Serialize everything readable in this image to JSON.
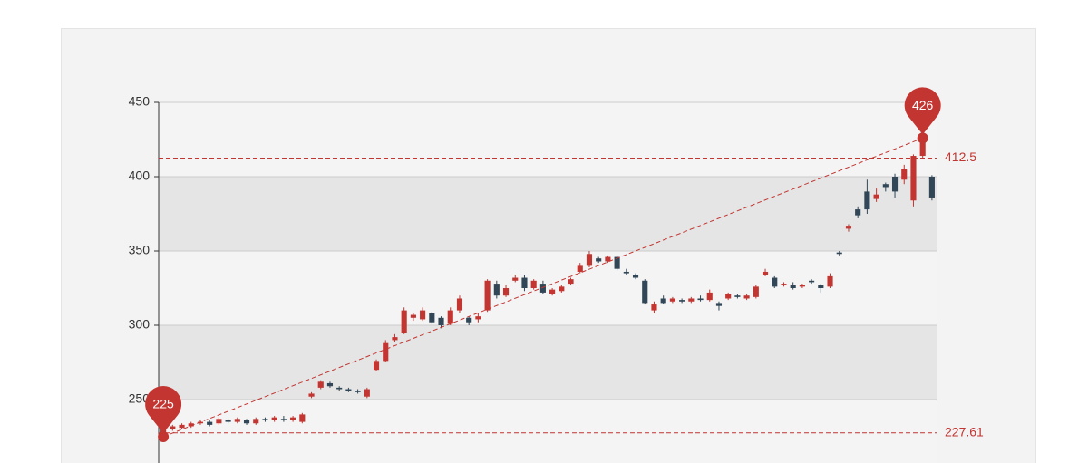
{
  "chart_data": {
    "type": "candlestick",
    "ylim": [
      200,
      450
    ],
    "yticks": [
      250,
      300,
      350,
      400,
      450
    ],
    "split_area": true,
    "up_color": "#c23531",
    "down_color": "#314656",
    "mark_color": "#c23531",
    "mark_points": [
      225,
      426
    ],
    "mark_lines": [
      412.5,
      227.61
    ],
    "trend_line": true,
    "series": [
      {
        "values": [
          [
            226,
            230,
            225,
            231
          ],
          [
            230,
            232,
            229,
            233
          ],
          [
            231,
            233,
            230,
            234
          ],
          [
            232,
            234,
            231,
            235
          ],
          [
            234,
            235,
            233,
            236
          ],
          [
            235,
            233,
            232,
            236
          ],
          [
            234,
            237,
            233,
            238
          ],
          [
            236,
            235,
            234,
            237
          ],
          [
            235,
            237,
            234,
            238
          ],
          [
            236,
            234,
            233,
            237
          ],
          [
            234,
            237,
            233,
            238
          ],
          [
            237,
            236,
            235,
            238
          ],
          [
            236,
            238,
            235,
            239
          ],
          [
            237,
            236,
            235,
            239
          ],
          [
            236,
            238,
            235,
            239
          ],
          [
            235,
            240,
            234,
            241
          ],
          [
            252,
            254,
            251,
            255
          ],
          [
            258,
            262,
            257,
            263
          ],
          [
            261,
            259,
            258,
            262
          ],
          [
            258,
            257,
            256,
            259
          ],
          [
            257,
            256,
            255,
            258
          ],
          [
            256,
            255,
            254,
            257
          ],
          [
            252,
            257,
            251,
            258
          ],
          [
            270,
            276,
            269,
            277
          ],
          [
            276,
            288,
            275,
            290
          ],
          [
            290,
            292,
            289,
            294
          ],
          [
            295,
            310,
            294,
            312
          ],
          [
            305,
            307,
            303,
            308
          ],
          [
            304,
            310,
            303,
            312
          ],
          [
            308,
            302,
            301,
            309
          ],
          [
            305,
            300,
            298,
            306
          ],
          [
            301,
            310,
            300,
            312
          ],
          [
            310,
            318,
            308,
            320
          ],
          [
            305,
            302,
            300,
            306
          ],
          [
            304,
            306,
            302,
            308
          ],
          [
            310,
            330,
            309,
            331
          ],
          [
            328,
            320,
            318,
            330
          ],
          [
            320,
            325,
            319,
            327
          ],
          [
            330,
            332,
            329,
            334
          ],
          [
            332,
            325,
            323,
            334
          ],
          [
            325,
            330,
            324,
            331
          ],
          [
            328,
            322,
            321,
            330
          ],
          [
            321,
            324,
            320,
            325
          ],
          [
            323,
            326,
            322,
            327
          ],
          [
            328,
            331,
            327,
            332
          ],
          [
            336,
            340,
            335,
            342
          ],
          [
            340,
            348,
            339,
            350
          ],
          [
            345,
            343,
            342,
            346
          ],
          [
            343,
            346,
            342,
            347
          ],
          [
            346,
            338,
            337,
            347
          ],
          [
            336,
            335,
            334,
            338
          ],
          [
            334,
            332,
            331,
            335
          ],
          [
            330,
            315,
            314,
            331
          ],
          [
            310,
            314,
            308,
            316
          ],
          [
            318,
            315,
            314,
            320
          ],
          [
            316,
            318,
            315,
            319
          ],
          [
            317,
            316,
            315,
            318
          ],
          [
            316,
            318,
            315,
            319
          ],
          [
            318,
            317,
            316,
            320
          ],
          [
            317,
            322,
            316,
            324
          ],
          [
            315,
            313,
            310,
            316
          ],
          [
            318,
            321,
            317,
            322
          ],
          [
            320,
            319,
            318,
            321
          ],
          [
            318,
            320,
            317,
            321
          ],
          [
            319,
            326,
            318,
            327
          ],
          [
            334,
            336,
            333,
            338
          ],
          [
            332,
            326,
            325,
            333
          ],
          [
            327,
            328,
            326,
            329
          ],
          [
            327,
            325,
            324,
            329
          ],
          [
            326,
            327,
            325,
            328
          ],
          [
            330,
            329,
            328,
            331
          ],
          [
            327,
            325,
            322,
            328
          ],
          [
            326,
            333,
            325,
            335
          ],
          [
            349,
            348,
            347,
            350
          ],
          [
            365,
            367,
            363,
            368
          ],
          [
            378,
            374,
            372,
            380
          ],
          [
            390,
            378,
            375,
            398
          ],
          [
            385,
            388,
            383,
            392
          ],
          [
            395,
            393,
            390,
            396
          ],
          [
            400,
            390,
            386,
            402
          ],
          [
            398,
            405,
            395,
            408
          ],
          [
            384,
            414,
            380,
            415
          ],
          [
            414,
            426,
            412,
            426
          ],
          [
            400,
            386,
            384,
            401
          ]
        ]
      }
    ]
  }
}
